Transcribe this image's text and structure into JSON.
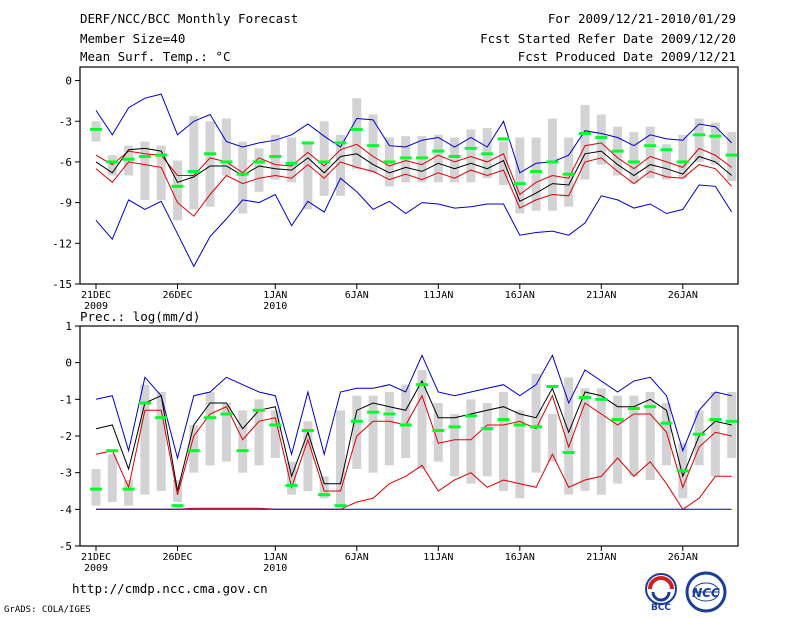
{
  "header": {
    "title": "DERF/NCC/BCC Monthly Forecast",
    "member_size": "Member Size=40",
    "variable": "Mean Surf. Temp.: °C",
    "forecast_period": "For 2009/12/21-2010/01/29",
    "refer_date": "Fcst Started Refer Date 2009/12/20",
    "produced_date": "Fcst Produced Date 2009/12/21"
  },
  "footer": {
    "url": "http://cmdp.ncc.cma.gov.cn",
    "credit": "GrADS: COLA/IGES",
    "logo_bcc": "BCC",
    "logo_ncc": "NCC"
  },
  "colors": {
    "box": "#d3d3d6",
    "median": "#00ff2a",
    "blue": "#0000cc",
    "red": "#dd0000",
    "black": "#000000"
  },
  "chart_data": [
    {
      "type": "box-ensemble",
      "title": "Mean Surf. Temp.: °C",
      "ylim": [
        -15,
        1
      ],
      "yticks": [
        0,
        -3,
        -6,
        -9,
        -12,
        -15
      ],
      "xticks": [
        {
          "day": 0,
          "label": "21DEC",
          "sub": "2009"
        },
        {
          "day": 5,
          "label": "26DEC",
          "sub": ""
        },
        {
          "day": 11,
          "label": "1JAN",
          "sub": "2010"
        },
        {
          "day": 16,
          "label": "6JAN",
          "sub": ""
        },
        {
          "day": 21,
          "label": "11JAN",
          "sub": ""
        },
        {
          "day": 26,
          "label": "16JAN",
          "sub": ""
        },
        {
          "day": 31,
          "label": "21JAN",
          "sub": ""
        },
        {
          "day": 36,
          "label": "26JAN",
          "sub": ""
        }
      ],
      "box_low": [
        -4.5,
        -7,
        -7,
        -8.8,
        -8.8,
        -10.3,
        -9.5,
        -9.3,
        -7,
        -9.8,
        -8.2,
        -7.3,
        -7.5,
        -9.5,
        -8.5,
        -8.5,
        -6.5,
        -6.8,
        -7.8,
        -7.5,
        -7.5,
        -7.5,
        -7.5,
        -7.5,
        -7.2,
        -7.7,
        -9.8,
        -9.6,
        -9.6,
        -9.3,
        -7.3,
        -6.2,
        -7,
        -7.6,
        -7.2,
        -7.3,
        -7.2,
        -6,
        -6.2,
        -7.4
      ],
      "box_high": [
        -3,
        -5.5,
        -4.8,
        -4.5,
        -4.8,
        -5.9,
        -2.6,
        -3,
        -2.8,
        -4.5,
        -5,
        -4,
        -4.2,
        -4.7,
        -3,
        -4,
        -1.3,
        -2.5,
        -4.2,
        -4.1,
        -4.1,
        -4,
        -4.2,
        -3.6,
        -3.5,
        -4.5,
        -4.2,
        -4.2,
        -2.8,
        -4.2,
        -1.8,
        -2.5,
        -3.4,
        -3.8,
        -3.4,
        -4.7,
        -4,
        -2.8,
        -3.1,
        -3.8
      ],
      "median": [
        -3.6,
        -6,
        -5.8,
        -5.6,
        -5.5,
        -7.8,
        -6.7,
        -5.4,
        -6,
        -6.9,
        -6,
        -5.6,
        -6.1,
        -4.6,
        -6,
        -4.6,
        -3.6,
        -4.8,
        -6,
        -5.7,
        -5.7,
        -5.2,
        -5.6,
        -5,
        -5.4,
        -4.3,
        -7.6,
        -6.7,
        -6,
        -6.9,
        -3.9,
        -4.2,
        -5.2,
        -6,
        -4.8,
        -5.1,
        -6,
        -4,
        -4.1,
        -5.5
      ],
      "series": [
        {
          "name": "max",
          "color": "blue",
          "values": [
            -2.2,
            -4,
            -2,
            -1.3,
            -1,
            -4,
            -3,
            -2.5,
            -4.5,
            -4.9,
            -4.6,
            -4.4,
            -4,
            -3.2,
            -4.1,
            -4.9,
            -2.8,
            -2.9,
            -4.8,
            -4.9,
            -4.4,
            -4.2,
            -4.9,
            -4.2,
            -4.9,
            -3,
            -6.8,
            -6.1,
            -6,
            -5.5,
            -3.7,
            -3.9,
            -4.2,
            -4.8,
            -4,
            -4.3,
            -4.4,
            -3.2,
            -3.4,
            -4.6
          ]
        },
        {
          "name": "ens_mean_upper",
          "color": "red",
          "values": [
            -5.5,
            -6.2,
            -5.2,
            -5.4,
            -5.5,
            -7,
            -7,
            -5.7,
            -6,
            -6.8,
            -5.7,
            -6.2,
            -6.3,
            -5.3,
            -6.3,
            -5.1,
            -4.7,
            -5.6,
            -6.3,
            -5.9,
            -6.2,
            -5.5,
            -6,
            -5.6,
            -6,
            -5.4,
            -8.4,
            -7.5,
            -7,
            -7.2,
            -4.8,
            -4.6,
            -5.7,
            -6.5,
            -5.6,
            -6,
            -6.4,
            -5,
            -5.5,
            -6.4
          ]
        },
        {
          "name": "ens_mean",
          "color": "black",
          "values": [
            -6,
            -6.8,
            -5.1,
            -5,
            -5.2,
            -7.5,
            -7.1,
            -6.3,
            -6.3,
            -7,
            -6.3,
            -6.5,
            -6.6,
            -5.7,
            -6.8,
            -5.6,
            -5.4,
            -6.2,
            -6.8,
            -6.4,
            -6.7,
            -6.1,
            -6.5,
            -6.1,
            -6.5,
            -5.9,
            -8.9,
            -8.3,
            -7.6,
            -7.7,
            -5.4,
            -5.2,
            -6.2,
            -7,
            -6.2,
            -6.5,
            -6.9,
            -5.6,
            -6,
            -7
          ]
        },
        {
          "name": "ens_mean_lower",
          "color": "red",
          "values": [
            -6.5,
            -7.5,
            -6,
            -6.2,
            -6.4,
            -9,
            -10,
            -8.4,
            -7,
            -7.6,
            -7.2,
            -7,
            -7.2,
            -6.2,
            -7.2,
            -6,
            -6.4,
            -6.7,
            -7.3,
            -6.9,
            -7.3,
            -6.8,
            -7.2,
            -6.6,
            -7,
            -6.6,
            -9.4,
            -8.8,
            -8.4,
            -8.5,
            -6,
            -5.7,
            -6.7,
            -7.6,
            -6.7,
            -7.1,
            -7.2,
            -6.2,
            -6.5,
            -7.8
          ]
        },
        {
          "name": "min",
          "color": "blue",
          "values": [
            -10.3,
            -11.7,
            -8.8,
            -9.5,
            -8.9,
            -11.3,
            -13.7,
            -11.5,
            -10.2,
            -8.8,
            -9,
            -8.4,
            -10.7,
            -8.9,
            -9.7,
            -7.2,
            -8.2,
            -9.5,
            -8.9,
            -9.8,
            -9,
            -9.1,
            -9.4,
            -9.3,
            -9.1,
            -9.1,
            -11.4,
            -11.2,
            -11.1,
            -11.4,
            -10.5,
            -8.5,
            -8.8,
            -9.4,
            -9.1,
            -9.8,
            -9.5,
            -7.7,
            -7.8,
            -9.7
          ]
        }
      ]
    },
    {
      "type": "box-ensemble",
      "title": "Prec.: log(mm/d)",
      "ylim": [
        -5,
        1
      ],
      "yticks": [
        1,
        0,
        -1,
        -2,
        -3,
        -4,
        -5
      ],
      "xticks": [
        {
          "day": 0,
          "label": "21DEC",
          "sub": "2009"
        },
        {
          "day": 5,
          "label": "26DEC",
          "sub": ""
        },
        {
          "day": 11,
          "label": "1JAN",
          "sub": "2010"
        },
        {
          "day": 16,
          "label": "6JAN",
          "sub": ""
        },
        {
          "day": 21,
          "label": "11JAN",
          "sub": ""
        },
        {
          "day": 26,
          "label": "16JAN",
          "sub": ""
        },
        {
          "day": 31,
          "label": "21JAN",
          "sub": ""
        },
        {
          "day": 36,
          "label": "26JAN",
          "sub": ""
        }
      ],
      "box_low": [
        -3.9,
        -3.8,
        -3.9,
        -3.6,
        -3.5,
        -3.8,
        -3,
        -2.8,
        -2.7,
        -3,
        -2.8,
        -2.6,
        -3.6,
        -3.5,
        -3.7,
        -3.9,
        -2.9,
        -3,
        -2.8,
        -2.6,
        -2.9,
        -2.7,
        -3.1,
        -3.3,
        -3.1,
        -3.5,
        -3.7,
        -3,
        -2.7,
        -3.6,
        -3.5,
        -3.6,
        -3.3,
        -3.1,
        -3.2,
        -2.8,
        -3.7,
        -2.8,
        -3.1,
        -2.6
      ],
      "box_high": [
        -2.9,
        -2.5,
        -3.2,
        -0.6,
        -0.8,
        -3.2,
        -1.7,
        -0.8,
        -1.1,
        -1.3,
        -1,
        -1.3,
        -2.7,
        -1.6,
        -3.1,
        -1.3,
        -0.9,
        -0.9,
        -0.8,
        -0.6,
        -0.2,
        -1.1,
        -1.4,
        -1,
        -1.1,
        -0.8,
        -1.3,
        -0.3,
        -1.4,
        -0.4,
        -0.7,
        -0.7,
        -0.9,
        -0.9,
        -0.8,
        -1.1,
        -2.2,
        -1.3,
        -0.8,
        -0.8
      ],
      "median": [
        -3.45,
        -2.4,
        -3.45,
        -1.1,
        -1.5,
        -3.9,
        -2.4,
        -1.5,
        -1.4,
        -2.4,
        -1.3,
        -1.7,
        -3.35,
        -1.85,
        -3.6,
        -3.9,
        -1.6,
        -1.35,
        -1.4,
        -1.7,
        -0.6,
        -1.85,
        -1.75,
        -1.45,
        -1.8,
        -1.55,
        -1.7,
        -1.75,
        -0.65,
        -2.45,
        -0.95,
        -1,
        -1.55,
        -1.25,
        -1.2,
        -1.65,
        -2.95,
        -1.95,
        -1.55,
        -1.6
      ],
      "series": [
        {
          "name": "max",
          "color": "blue",
          "values": [
            -1,
            -0.9,
            -2.4,
            -0.4,
            -0.9,
            -2.6,
            -0.9,
            -0.8,
            -0.4,
            -0.6,
            -0.8,
            -0.9,
            -2.5,
            -0.8,
            -2.5,
            -0.8,
            -0.7,
            -0.7,
            -0.6,
            -0.8,
            0.2,
            -0.8,
            -0.9,
            -0.8,
            -0.7,
            -0.6,
            -0.9,
            -0.6,
            0.2,
            -1.1,
            -0.2,
            -0.5,
            -0.8,
            -0.5,
            -0.4,
            -0.9,
            -2.4,
            -1.3,
            -0.8,
            -0.9
          ]
        },
        {
          "name": "ens_mean",
          "color": "black",
          "values": [
            -1.8,
            -1.7,
            -2.9,
            -1.1,
            -0.9,
            -3.5,
            -1.7,
            -1.1,
            -1.1,
            -1.8,
            -1.3,
            -1.2,
            -3.1,
            -1.9,
            -3.3,
            -3.3,
            -1.3,
            -1.1,
            -1.2,
            -1.3,
            -0.5,
            -1.5,
            -1.5,
            -1.4,
            -1.3,
            -1.2,
            -1.4,
            -1.5,
            -0.7,
            -1.9,
            -0.8,
            -0.9,
            -1.2,
            -1.2,
            -1,
            -1.3,
            -3.1,
            -2,
            -1.6,
            -1.7
          ]
        },
        {
          "name": "ens_mean_lower",
          "color": "red",
          "values": [
            -2.5,
            -2.4,
            -3.4,
            -1.3,
            -1.3,
            -3.6,
            -2,
            -1.4,
            -1.2,
            -2.1,
            -1.6,
            -1.5,
            -3.4,
            -2.1,
            -3.5,
            -3.5,
            -2,
            -1.6,
            -1.6,
            -1.7,
            -0.9,
            -2.2,
            -2.1,
            -2.1,
            -1.7,
            -1.7,
            -1.6,
            -1.8,
            -0.9,
            -2.3,
            -1.1,
            -1.4,
            -1.7,
            -1.4,
            -1.4,
            -1.9,
            -3.4,
            -2.3,
            -1.9,
            -2
          ]
        },
        {
          "name": "ens_mean_lowest",
          "color": "red",
          "values": [
            -4,
            -4,
            -4,
            -4,
            -4,
            -4,
            -3.97,
            -3.97,
            -3.97,
            -3.97,
            -3.97,
            -4,
            -4,
            -4,
            -4,
            -4,
            -3.8,
            -3.7,
            -3.3,
            -3.1,
            -2.8,
            -3.5,
            -3.2,
            -3,
            -3.4,
            -3.2,
            -3.3,
            -3.4,
            -2.5,
            -3.4,
            -3.2,
            -3.1,
            -2.6,
            -3.1,
            -2.7,
            -3.3,
            -4,
            -3.7,
            -3.1,
            -3.1
          ]
        },
        {
          "name": "min",
          "color": "blue",
          "values": [
            -4,
            -4,
            -4,
            -4,
            -4,
            -4,
            -4,
            -4,
            -4,
            -4,
            -4,
            -4,
            -4,
            -4,
            -4,
            -4,
            -4,
            -4,
            -4,
            -4,
            -4,
            -4,
            -4,
            -4,
            -4,
            -4,
            -4,
            -4,
            -4,
            -4,
            -4,
            -4,
            -4,
            -4,
            -4,
            -4,
            -4,
            -4,
            -4,
            -4
          ]
        }
      ]
    }
  ]
}
